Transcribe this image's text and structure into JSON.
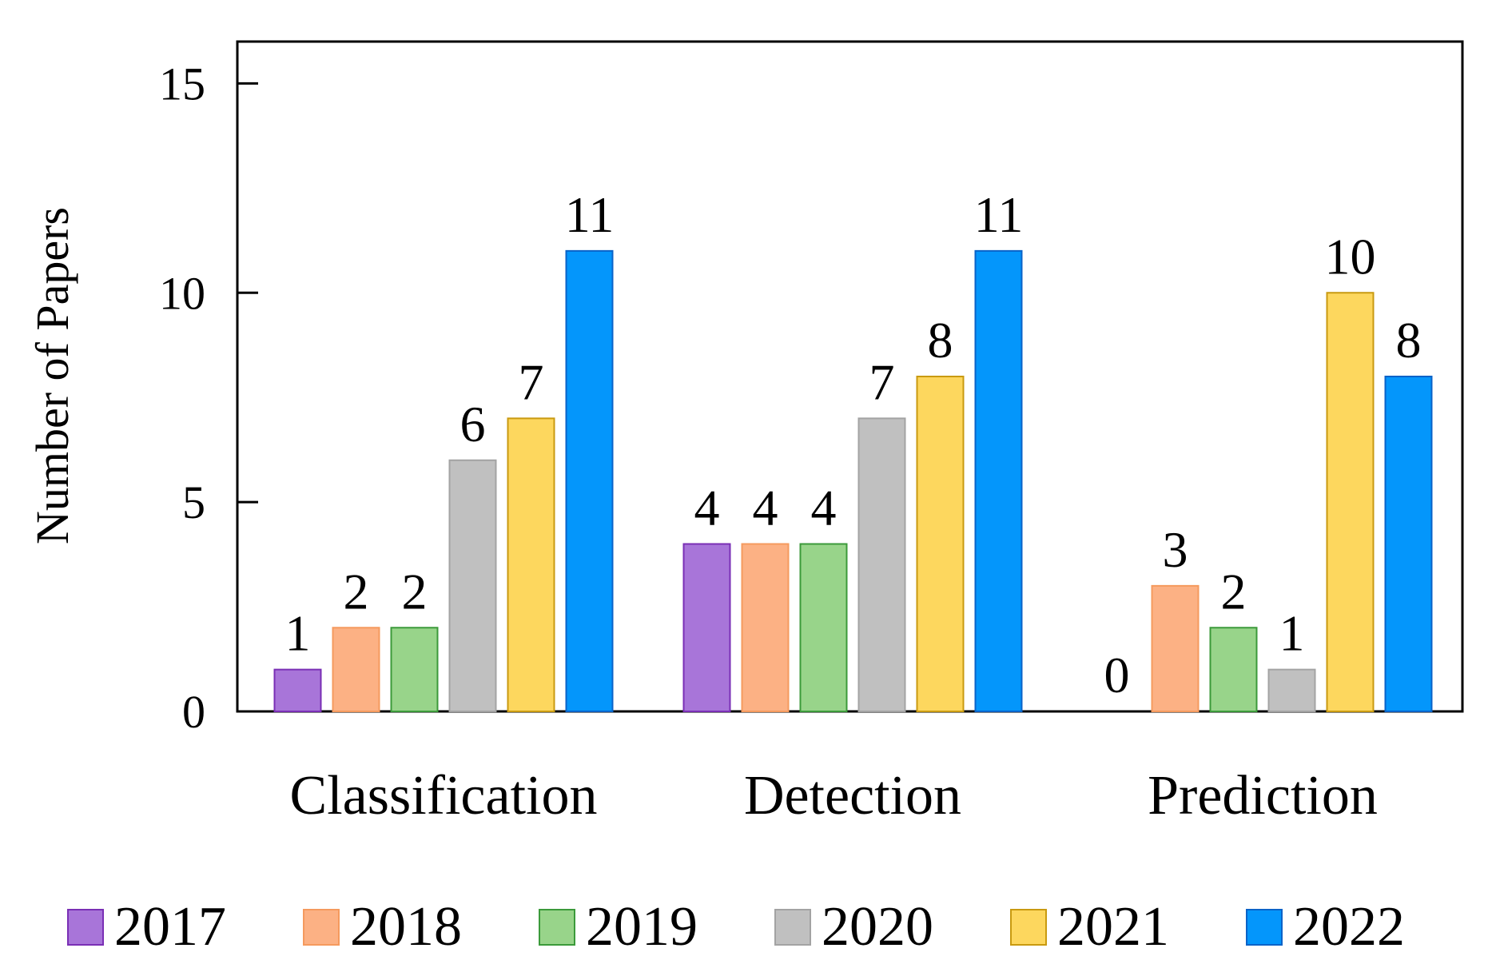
{
  "chart_data": {
    "type": "bar",
    "title": "",
    "xlabel": "",
    "ylabel": "Number of Papers",
    "ylim": [
      0,
      16
    ],
    "yticks": [
      0,
      5,
      10,
      15
    ],
    "grid": false,
    "legend_position": "bottom",
    "categories": [
      "Classification",
      "Detection",
      "Prediction"
    ],
    "series": [
      {
        "name": "2017",
        "values": [
          1,
          4,
          0
        ],
        "fill": "#a875d9",
        "stroke": "#7a2fb5"
      },
      {
        "name": "2018",
        "values": [
          2,
          4,
          3
        ],
        "fill": "#fcb184",
        "stroke": "#f59a5e"
      },
      {
        "name": "2019",
        "values": [
          2,
          4,
          2
        ],
        "fill": "#98d48a",
        "stroke": "#3b9a3a"
      },
      {
        "name": "2020",
        "values": [
          6,
          7,
          1
        ],
        "fill": "#c0c0c0",
        "stroke": "#a3a3a3"
      },
      {
        "name": "2021",
        "values": [
          7,
          8,
          10
        ],
        "fill": "#fdd75e",
        "stroke": "#c99a10"
      },
      {
        "name": "2022",
        "values": [
          11,
          11,
          8
        ],
        "fill": "#0496fb",
        "stroke": "#0a63c8"
      }
    ]
  }
}
